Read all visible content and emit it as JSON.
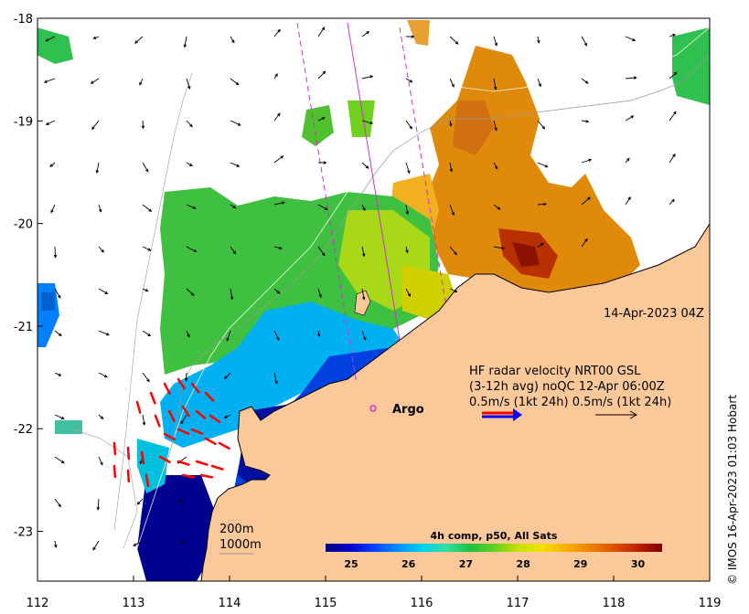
{
  "map": {
    "x_ticks": [
      "112",
      "113",
      "114",
      "115",
      "116",
      "117",
      "118",
      "119"
    ],
    "y_ticks": [
      "-18",
      "-19",
      "-20",
      "-21",
      "-22",
      "-23"
    ],
    "timestamp": "14-Apr-2023 04Z",
    "legend": {
      "line1": "HF radar velocity  NRT00 GSL",
      "line2": "(3-12h avg) noQC 12-Apr 06:00Z",
      "line3": "0.5m/s (1kt 24h)   0.5m/s (1kt 24h)"
    },
    "argo_label": "Argo",
    "contours": {
      "label_200": "200m",
      "label_1000": "1000m"
    },
    "colorbar": {
      "title": "4h comp, p50, All Sats",
      "ticks": [
        "25",
        "26",
        "27",
        "28",
        "29",
        "30"
      ],
      "colors": [
        "#00007f",
        "#0000c8",
        "#0040ff",
        "#0090ff",
        "#00d0f0",
        "#30e0a0",
        "#20c040",
        "#60d020",
        "#c8e000",
        "#f0e000",
        "#f8b000",
        "#f08000",
        "#e05000",
        "#c02000",
        "#800000"
      ]
    },
    "colors": {
      "land": "#fbc899",
      "warm": "#e08a0c",
      "arrow_radar": "#ff0000",
      "track": "#cc33cc"
    },
    "credit": "© IMOS 16-Apr-2023 01:03 Hobart"
  }
}
